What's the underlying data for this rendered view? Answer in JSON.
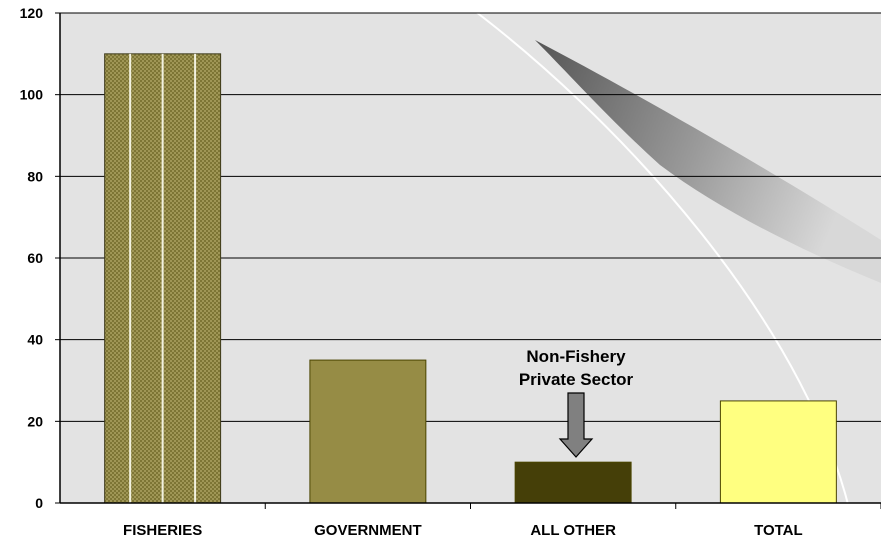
{
  "chart_data": {
    "type": "bar",
    "title": "",
    "xlabel": "",
    "ylabel": "",
    "categories": [
      "FISHERIES",
      "GOVERNMENT",
      "ALL OTHER",
      "TOTAL"
    ],
    "values": [
      110,
      35,
      10,
      25
    ],
    "ylim": [
      0,
      120
    ],
    "yticks": [
      0,
      20,
      40,
      60,
      80,
      100,
      120
    ],
    "grid": true,
    "legend": "none",
    "bar_colors": [
      "#9a9150",
      "#968c45",
      "#453f08",
      "#ffff80"
    ],
    "annotation": {
      "lines": [
        "Non-Fishery",
        "Private Sector"
      ],
      "points_to": "ALL OTHER"
    }
  },
  "colors": {
    "plot_background": "#e3e3e3",
    "gridline": "#000000",
    "arrow_fill": "#808080"
  }
}
